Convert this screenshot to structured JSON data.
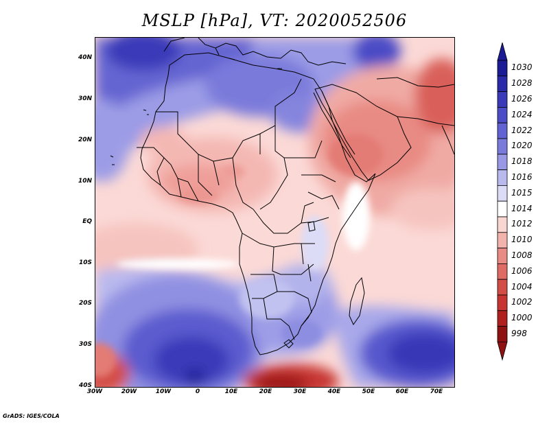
{
  "title": "MSLP [hPa], VT: 2020052506",
  "credit": "GrADS: IGES/COLA",
  "y_ticks": [
    "40N",
    "30N",
    "20N",
    "10N",
    "EQ",
    "10S",
    "20S",
    "30S",
    "40S"
  ],
  "x_ticks": [
    "30W",
    "20W",
    "10W",
    "0",
    "10E",
    "20E",
    "30E",
    "40E",
    "50E",
    "60E",
    "70E"
  ],
  "colorbar": {
    "labels": [
      "1030",
      "1028",
      "1026",
      "1024",
      "1022",
      "1020",
      "1018",
      "1016",
      "1015",
      "1014",
      "1012",
      "1010",
      "1008",
      "1006",
      "1004",
      "1002",
      "1000",
      "998"
    ],
    "colors": [
      "#1b1b96",
      "#2a2aa8",
      "#3a3ab9",
      "#4c4cc6",
      "#6262d2",
      "#7a7adb",
      "#9898e5",
      "#b9b9ee",
      "#dcdcf7",
      "#ffffff",
      "#fad6d3",
      "#f2b3ad",
      "#e88b84",
      "#de6b64",
      "#d34d47",
      "#c63532",
      "#b0201f",
      "#8f1212"
    ]
  },
  "chart_data": {
    "type": "heatmap",
    "title": "MSLP [hPa], VT: 2020052506",
    "variable": "MSLP",
    "units": "hPa",
    "valid_time": "2020052506",
    "lon_range": [
      -30,
      75
    ],
    "lat_range": [
      -40,
      45
    ],
    "levels": [
      998,
      1000,
      1002,
      1004,
      1006,
      1008,
      1010,
      1012,
      1014,
      1015,
      1016,
      1018,
      1020,
      1022,
      1024,
      1026,
      1028,
      1030
    ]
  }
}
